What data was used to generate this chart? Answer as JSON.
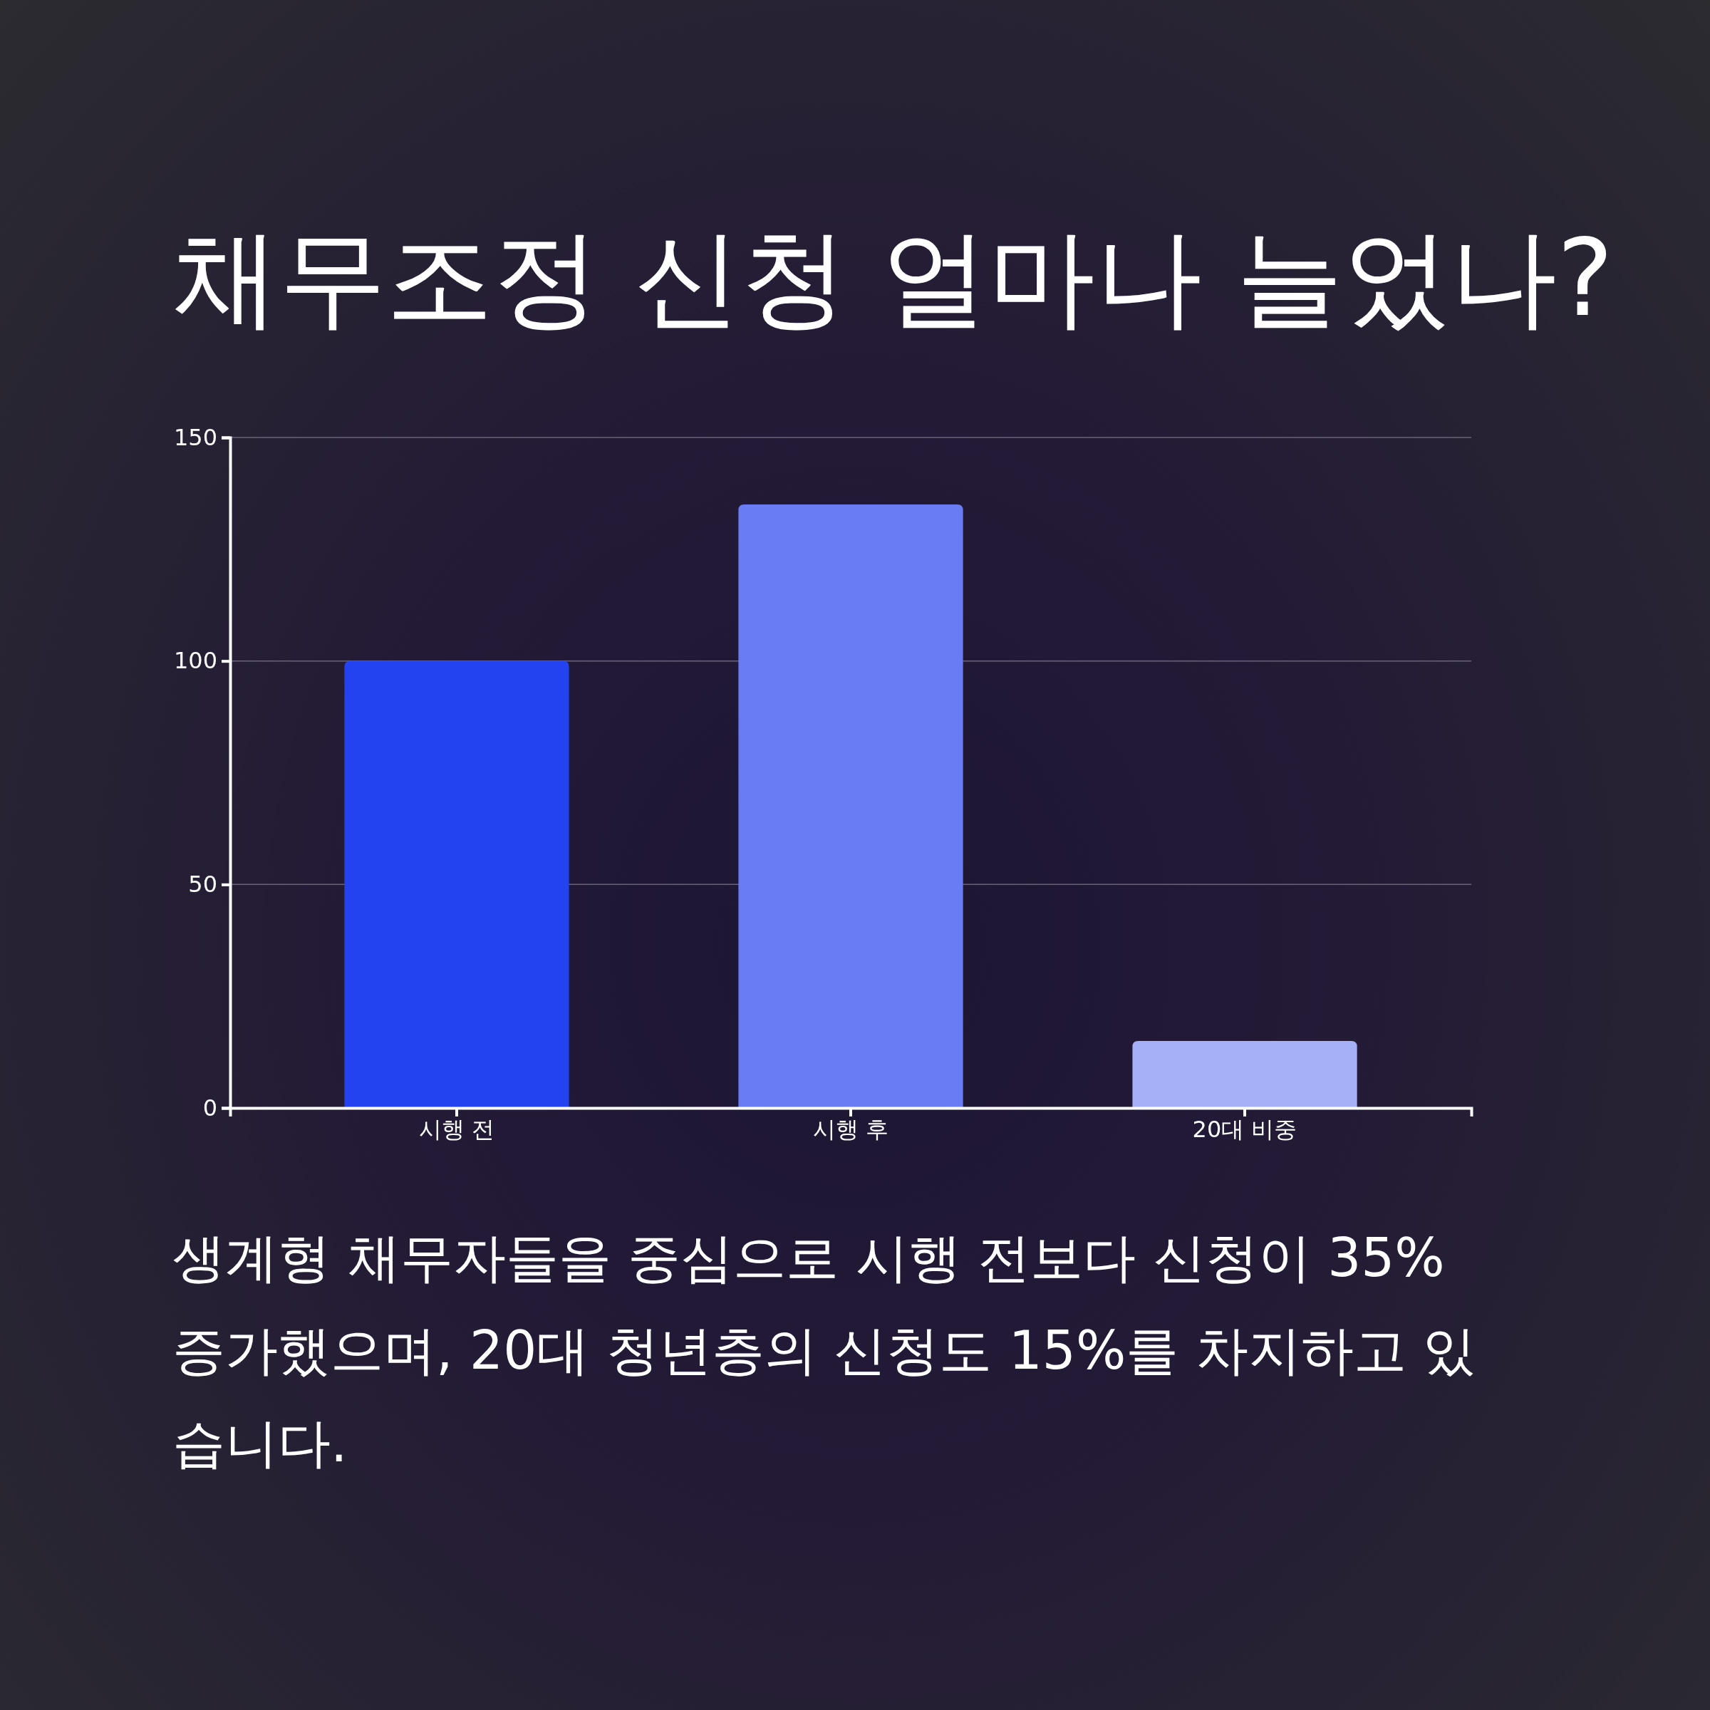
{
  "chart_data": {
    "type": "bar",
    "title": "채무조정 신청 얼마나 늘었나?",
    "categories": [
      "시행 전",
      "시행 후",
      "20대 비중"
    ],
    "values": [
      100,
      135,
      15
    ],
    "colors": [
      "#2343f0",
      "#6a7cf4",
      "#a5b0f7"
    ],
    "ylim": [
      0,
      150
    ],
    "yticks": [
      0,
      50,
      100,
      150
    ],
    "grid": "y",
    "annotations": [
      "생계형 채무자들을 중심으로 시행 전보다 신청이 35% 증가했으며, 20대 청년층의 신청도 15%를 차지하고 있습니다."
    ]
  }
}
